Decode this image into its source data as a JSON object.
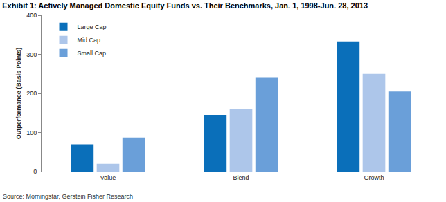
{
  "chart_data": {
    "type": "bar",
    "title": "Exhibit 1: Actively Managed Domestic Equity Funds vs. Their Benchmarks, Jan. 1, 1998-Jun. 28, 2013",
    "y_label": "Outperformance (Basis Points)",
    "annotations": [
      "Source: Morningstar, Gerstein Fisher Research"
    ],
    "categories": [
      "Value",
      "Blend",
      "Growth"
    ],
    "series": [
      {
        "name": "Large Cap",
        "color": "#0a6fba",
        "values": [
          70,
          145,
          333
        ]
      },
      {
        "name": "Mid Cap",
        "color": "#adc6ea",
        "values": [
          20,
          160,
          250
        ]
      },
      {
        "name": "Small Cap",
        "color": "#6a9fd9",
        "values": [
          87,
          240,
          205
        ]
      }
    ],
    "ylim": [
      0,
      400
    ],
    "yticks": [
      0,
      100,
      200,
      300,
      400
    ],
    "grid": false,
    "legend": "top-left"
  }
}
